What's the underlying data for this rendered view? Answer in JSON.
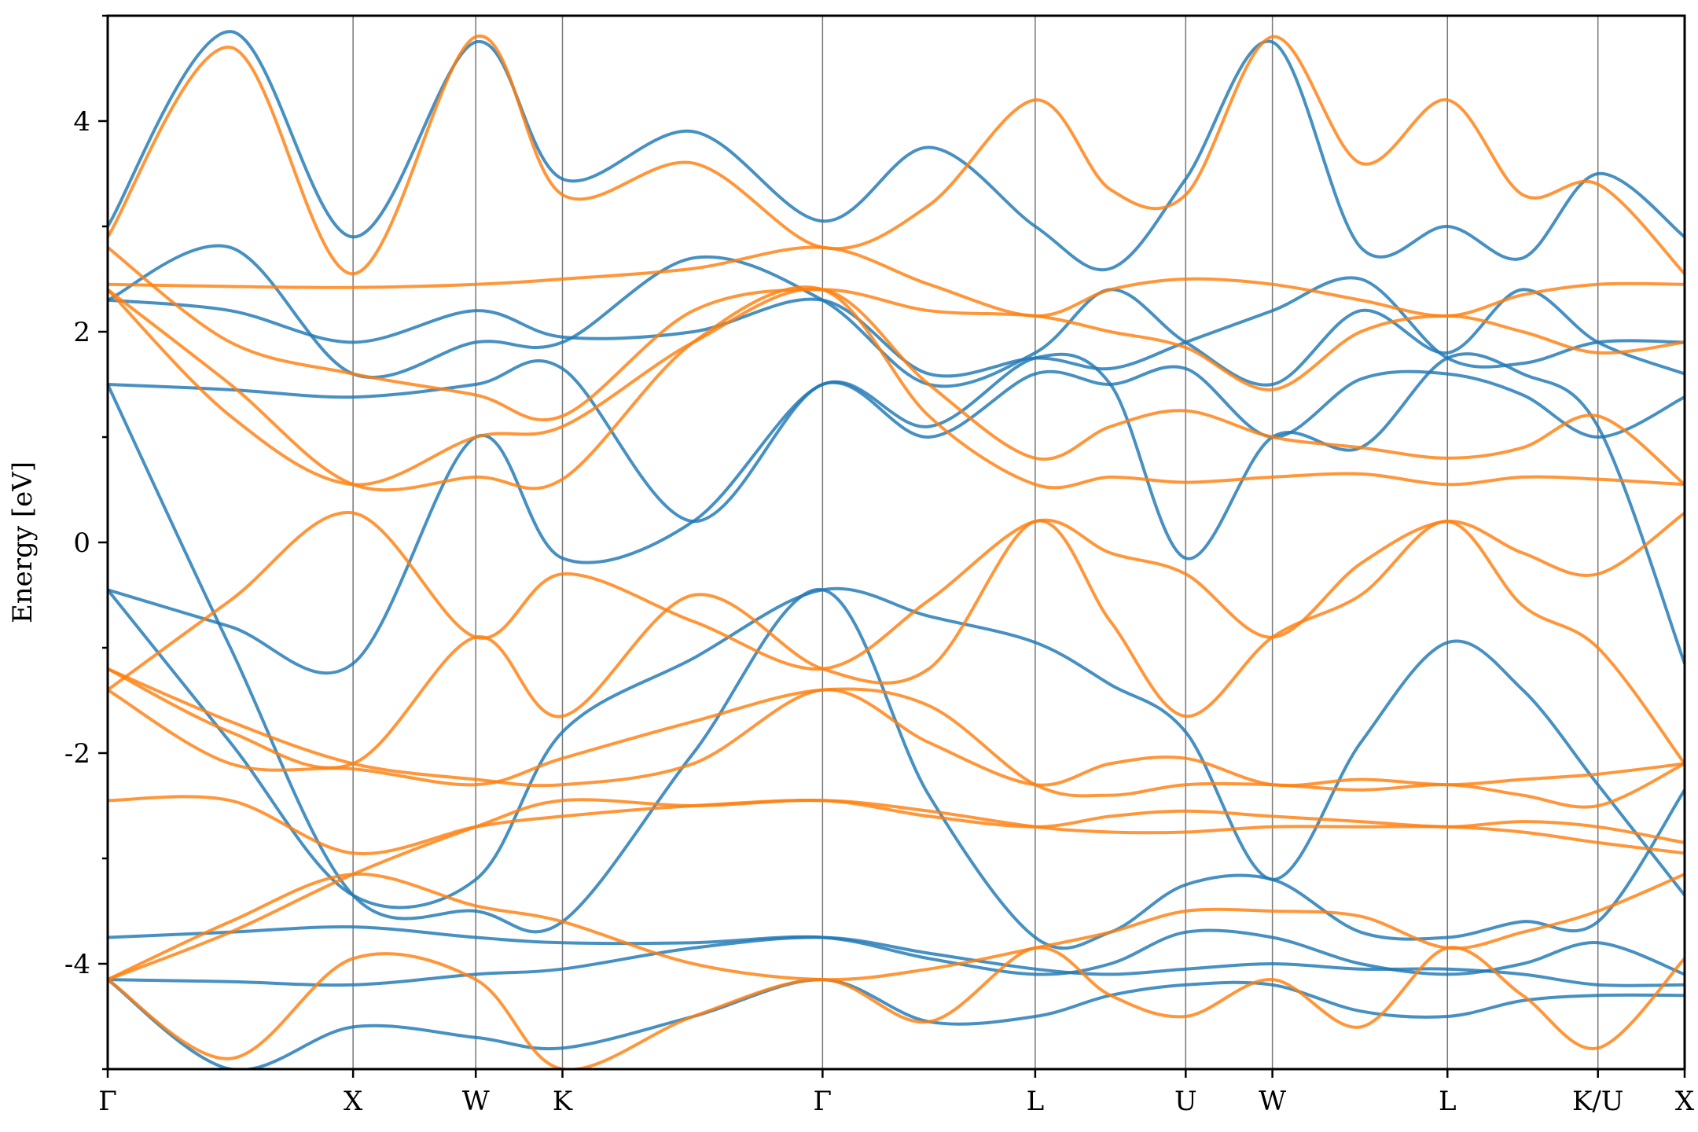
{
  "chart_data": {
    "type": "line",
    "title": "",
    "xlabel": "",
    "ylabel": "Energy [eV]",
    "ylim": [
      -5,
      5
    ],
    "y_ticks": [
      -4,
      -2,
      0,
      2,
      4
    ],
    "y_tick_labels": [
      "-4",
      "-2",
      "0",
      "2",
      "4"
    ],
    "grid": false,
    "legend": "none",
    "colors": {
      "spin_blue": "#1f77b4",
      "spin_orange": "#ff7f0e"
    },
    "kpath_positions": [
      0,
      1.5,
      2.25,
      2.78,
      4.37,
      5.67,
      6.59,
      7.12,
      8.19,
      9.11,
      9.64
    ],
    "kpath_labels": [
      "Γ",
      "X",
      "W",
      "K",
      "Γ",
      "L",
      "U",
      "W",
      "L",
      "K/U",
      "X"
    ],
    "series": [
      {
        "color": "blue",
        "x": [
          0,
          0.75,
          1.5,
          2.25,
          2.78,
          3.58,
          4.37,
          5.02,
          5.67,
          6.13,
          6.59,
          7.12,
          7.66,
          8.19,
          8.65,
          9.11,
          9.64
        ],
        "y": [
          -0.45,
          -0.8,
          -1.15,
          1.0,
          -0.15,
          0.2,
          1.5,
          1.1,
          1.75,
          1.5,
          -0.15,
          1.0,
          0.9,
          1.75,
          1.6,
          1.1,
          -1.15
        ]
      },
      {
        "color": "blue",
        "x": [
          0,
          0.75,
          1.5,
          2.25,
          2.78,
          3.58,
          4.37,
          5.02,
          5.67,
          6.13,
          6.59,
          7.12,
          7.66,
          8.19,
          8.65,
          9.11,
          9.64
        ],
        "y": [
          -0.45,
          -1.9,
          -3.35,
          -3.2,
          -1.8,
          -1.1,
          -0.45,
          -0.7,
          -0.95,
          -1.35,
          -1.8,
          -3.2,
          -1.9,
          -0.95,
          -1.4,
          -2.3,
          -3.35
        ]
      },
      {
        "color": "blue",
        "x": [
          0,
          0.75,
          1.5,
          2.25,
          2.78,
          3.58,
          4.37,
          5.02,
          5.67,
          6.13,
          6.59,
          7.12,
          7.66,
          8.19,
          8.65,
          9.11,
          9.64
        ],
        "y": [
          1.5,
          -1.0,
          -3.35,
          -3.5,
          -3.6,
          -2.0,
          -0.45,
          -2.4,
          -3.75,
          -3.7,
          -3.25,
          -3.2,
          -3.7,
          -3.75,
          -3.6,
          -3.6,
          -2.35
        ]
      },
      {
        "color": "blue",
        "x": [
          0,
          0.75,
          1.5,
          2.25,
          2.78,
          3.58,
          4.37,
          5.02,
          5.67,
          6.13,
          6.59,
          7.12,
          7.66,
          8.19,
          8.65,
          9.11,
          9.64
        ],
        "y": [
          1.5,
          1.45,
          1.38,
          1.5,
          1.65,
          0.2,
          1.5,
          1.0,
          1.6,
          1.5,
          1.65,
          1.0,
          1.55,
          1.6,
          1.4,
          1.0,
          1.38
        ]
      },
      {
        "color": "blue",
        "x": [
          0,
          0.75,
          1.5,
          2.25,
          2.78,
          3.58,
          4.37,
          5.02,
          5.67,
          6.13,
          6.59,
          7.12,
          7.66,
          8.19,
          8.65,
          9.11,
          9.64
        ],
        "y": [
          2.3,
          2.8,
          1.6,
          1.9,
          1.9,
          2.7,
          2.3,
          1.5,
          1.8,
          2.4,
          1.9,
          1.5,
          2.2,
          1.8,
          2.4,
          1.9,
          1.6
        ]
      },
      {
        "color": "blue",
        "x": [
          0,
          0.75,
          1.5,
          2.25,
          2.78,
          3.58,
          4.37,
          5.02,
          5.67,
          6.13,
          6.59,
          7.12,
          7.66,
          8.19,
          8.65,
          9.11,
          9.64
        ],
        "y": [
          2.3,
          2.2,
          1.9,
          2.2,
          1.95,
          2.0,
          2.3,
          1.6,
          1.75,
          1.65,
          1.9,
          2.2,
          2.5,
          1.75,
          1.7,
          1.9,
          1.9
        ]
      },
      {
        "color": "blue",
        "x": [
          0,
          0.75,
          1.5,
          2.25,
          2.78,
          3.58,
          4.37,
          5.02,
          5.67,
          6.13,
          6.59,
          7.12,
          7.66,
          8.19,
          8.65,
          9.11,
          9.64
        ],
        "y": [
          3.0,
          4.85,
          2.9,
          4.75,
          3.45,
          3.9,
          3.05,
          3.75,
          3.0,
          2.6,
          3.45,
          4.75,
          2.8,
          3.0,
          2.7,
          3.5,
          2.9
        ]
      },
      {
        "color": "blue",
        "x": [
          0,
          0.75,
          1.5,
          2.25,
          2.78,
          3.58,
          4.37,
          5.02,
          5.67,
          6.13,
          6.59,
          7.12,
          7.66,
          8.19,
          8.65,
          9.11,
          9.64
        ],
        "y": [
          -3.75,
          -3.7,
          -3.65,
          -3.75,
          -3.8,
          -3.8,
          -3.75,
          -3.95,
          -4.1,
          -4.0,
          -3.7,
          -3.75,
          -4.0,
          -4.1,
          -4.0,
          -3.8,
          -4.1
        ]
      },
      {
        "color": "blue",
        "x": [
          0,
          0.75,
          1.5,
          2.25,
          2.78,
          3.58,
          4.37,
          5.02,
          5.67,
          6.13,
          6.59,
          7.12,
          7.66,
          8.19,
          8.65,
          9.11,
          9.64
        ],
        "y": [
          -4.15,
          -4.17,
          -4.2,
          -4.1,
          -4.05,
          -3.85,
          -3.75,
          -3.9,
          -4.05,
          -4.1,
          -4.05,
          -4.0,
          -4.05,
          -4.05,
          -4.1,
          -4.2,
          -4.2
        ]
      },
      {
        "color": "blue",
        "x": [
          0,
          0.75,
          1.5,
          2.25,
          2.78,
          3.58,
          4.37,
          5.02,
          5.67,
          6.13,
          6.59,
          7.12,
          7.66,
          8.19,
          8.65,
          9.11,
          9.64
        ],
        "y": [
          -4.15,
          -5.0,
          -4.6,
          -4.7,
          -4.8,
          -4.5,
          -4.15,
          -4.55,
          -4.5,
          -4.3,
          -4.2,
          -4.2,
          -4.45,
          -4.5,
          -4.35,
          -4.3,
          -4.3
        ]
      },
      {
        "color": "orange",
        "x": [
          0,
          0.75,
          1.5,
          2.25,
          2.78,
          3.58,
          4.37,
          5.02,
          5.67,
          6.13,
          6.59,
          7.12,
          7.66,
          8.19,
          8.65,
          9.11,
          9.64
        ],
        "y": [
          -1.4,
          -0.55,
          0.28,
          -0.9,
          -0.3,
          -0.75,
          -1.2,
          -0.55,
          0.2,
          -0.1,
          -0.3,
          -0.9,
          -0.2,
          0.2,
          -0.1,
          -0.3,
          0.28
        ]
      },
      {
        "color": "orange",
        "x": [
          0,
          0.75,
          1.5,
          2.25,
          2.78,
          3.58,
          4.37,
          5.02,
          5.67,
          6.13,
          6.59,
          7.12,
          7.66,
          8.19,
          8.65,
          9.11,
          9.64
        ],
        "y": [
          -1.2,
          -1.8,
          -2.1,
          -0.9,
          -1.65,
          -0.5,
          -1.2,
          -1.2,
          0.2,
          -0.75,
          -1.65,
          -0.9,
          -0.5,
          0.2,
          -0.6,
          -1.0,
          -2.1
        ]
      },
      {
        "color": "orange",
        "x": [
          0,
          0.75,
          1.5,
          2.25,
          2.78,
          3.58,
          4.37,
          5.02,
          5.67,
          6.13,
          6.59,
          7.12,
          7.66,
          8.19,
          8.65,
          9.11,
          9.64
        ],
        "y": [
          2.4,
          1.2,
          0.55,
          1.0,
          1.1,
          1.9,
          2.4,
          1.5,
          0.8,
          1.1,
          1.25,
          1.0,
          0.9,
          0.8,
          0.9,
          1.2,
          0.55
        ]
      },
      {
        "color": "orange",
        "x": [
          0,
          0.75,
          1.5,
          2.25,
          2.78,
          3.58,
          4.37,
          5.02,
          5.67,
          6.13,
          6.59,
          7.12,
          7.66,
          8.19,
          8.65,
          9.11,
          9.64
        ],
        "y": [
          2.4,
          1.5,
          0.55,
          0.62,
          0.6,
          1.9,
          2.4,
          1.2,
          0.55,
          0.62,
          0.57,
          0.62,
          0.65,
          0.55,
          0.62,
          0.6,
          0.55
        ]
      },
      {
        "color": "orange",
        "x": [
          0,
          0.75,
          1.5,
          2.25,
          2.78,
          3.58,
          4.37,
          5.02,
          5.67,
          6.13,
          6.59,
          7.12,
          7.66,
          8.19,
          8.65,
          9.11,
          9.64
        ],
        "y": [
          2.45,
          2.43,
          2.42,
          2.45,
          2.5,
          2.6,
          2.8,
          2.45,
          2.15,
          2.4,
          2.5,
          2.45,
          2.3,
          2.15,
          2.35,
          2.45,
          2.45
        ]
      },
      {
        "color": "orange",
        "x": [
          0,
          0.75,
          1.5,
          2.25,
          2.78,
          3.58,
          4.37,
          5.02,
          5.67,
          6.13,
          6.59,
          7.12,
          7.66,
          8.19,
          8.65,
          9.11,
          9.64
        ],
        "y": [
          2.8,
          1.9,
          1.6,
          1.4,
          1.2,
          2.2,
          2.4,
          2.2,
          2.15,
          2.0,
          1.85,
          1.45,
          2.0,
          2.15,
          2.0,
          1.8,
          1.9
        ]
      },
      {
        "color": "orange",
        "x": [
          0,
          0.75,
          1.5,
          2.25,
          2.78,
          3.58,
          4.37,
          5.02,
          5.67,
          6.13,
          6.59,
          7.12,
          7.66,
          8.19,
          8.65,
          9.11,
          9.64
        ],
        "y": [
          2.9,
          4.7,
          2.55,
          4.8,
          3.3,
          3.6,
          2.8,
          3.2,
          4.2,
          3.35,
          3.3,
          4.8,
          3.6,
          4.2,
          3.3,
          3.4,
          2.55
        ]
      },
      {
        "color": "orange",
        "x": [
          0,
          0.75,
          1.5,
          2.25,
          2.78,
          3.58,
          4.37,
          5.02,
          5.67,
          6.13,
          6.59,
          7.12,
          7.66,
          8.19,
          8.65,
          9.11,
          9.64
        ],
        "y": [
          -2.45,
          -2.45,
          -2.95,
          -2.7,
          -2.6,
          -2.5,
          -2.45,
          -2.55,
          -2.7,
          -2.75,
          -2.75,
          -2.7,
          -2.7,
          -2.7,
          -2.75,
          -2.85,
          -2.95
        ]
      },
      {
        "color": "orange",
        "x": [
          0,
          0.75,
          1.5,
          2.25,
          2.78,
          3.58,
          4.37,
          5.02,
          5.67,
          6.13,
          6.59,
          7.12,
          7.66,
          8.19,
          8.65,
          9.11,
          9.64
        ],
        "y": [
          -1.2,
          -1.7,
          -2.1,
          -2.25,
          -2.3,
          -2.1,
          -1.4,
          -1.9,
          -2.3,
          -2.1,
          -2.05,
          -2.3,
          -2.25,
          -2.3,
          -2.25,
          -2.2,
          -2.1
        ]
      },
      {
        "color": "orange",
        "x": [
          0,
          0.75,
          1.5,
          2.25,
          2.78,
          3.58,
          4.37,
          5.02,
          5.67,
          6.13,
          6.59,
          7.12,
          7.66,
          8.19,
          8.65,
          9.11,
          9.64
        ],
        "y": [
          -1.4,
          -2.1,
          -2.15,
          -2.3,
          -2.05,
          -1.7,
          -1.4,
          -1.55,
          -2.3,
          -2.4,
          -2.3,
          -2.3,
          -2.35,
          -2.3,
          -2.4,
          -2.5,
          -2.1
        ]
      },
      {
        "color": "orange",
        "x": [
          0,
          0.75,
          1.5,
          2.25,
          2.78,
          3.58,
          4.37,
          5.02,
          5.67,
          6.13,
          6.59,
          7.12,
          7.66,
          8.19,
          8.65,
          9.11,
          9.64
        ],
        "y": [
          -4.15,
          -3.7,
          -3.15,
          -2.7,
          -2.45,
          -2.5,
          -2.45,
          -2.6,
          -2.7,
          -2.6,
          -2.55,
          -2.6,
          -2.65,
          -2.7,
          -2.65,
          -2.7,
          -2.85
        ]
      },
      {
        "color": "orange",
        "x": [
          0,
          0.75,
          1.5,
          2.25,
          2.78,
          3.58,
          4.37,
          5.02,
          5.67,
          6.13,
          6.59,
          7.12,
          7.66,
          8.19,
          8.65,
          9.11,
          9.64
        ],
        "y": [
          -4.15,
          -3.6,
          -3.15,
          -3.45,
          -3.6,
          -4.0,
          -4.15,
          -4.05,
          -3.85,
          -3.7,
          -3.5,
          -3.5,
          -3.55,
          -3.85,
          -3.7,
          -3.5,
          -3.15
        ]
      },
      {
        "color": "orange",
        "x": [
          0,
          0.75,
          1.5,
          2.25,
          2.78,
          3.58,
          4.37,
          5.02,
          5.67,
          6.13,
          6.59,
          7.12,
          7.66,
          8.19,
          8.65,
          9.11,
          9.64
        ],
        "y": [
          -4.15,
          -4.9,
          -3.95,
          -4.15,
          -5.0,
          -4.5,
          -4.15,
          -4.55,
          -3.85,
          -4.3,
          -4.5,
          -4.15,
          -4.6,
          -3.85,
          -4.3,
          -4.8,
          -3.95
        ]
      }
    ]
  }
}
